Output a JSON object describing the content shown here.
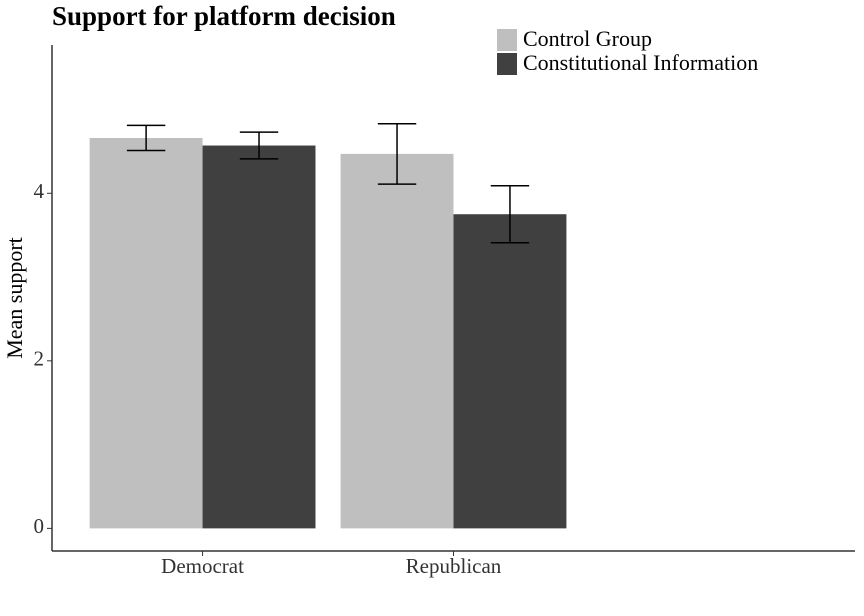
{
  "chart_data": {
    "type": "bar",
    "title": "Support for platform decision",
    "y_label": "Mean support",
    "categories": [
      "Democrat",
      "Republican"
    ],
    "series": [
      {
        "name": "Control Group",
        "color": "#bfbfbf",
        "values": [
          4.66,
          4.47
        ],
        "errors": [
          0.15,
          0.36
        ]
      },
      {
        "name": "Constitutional Information",
        "color": "#404040",
        "values": [
          4.57,
          3.75
        ],
        "errors": [
          0.16,
          0.34
        ]
      }
    ],
    "ylim": [
      -0.27,
      5.77
    ],
    "yticks": [
      0,
      2,
      4
    ],
    "grid": false,
    "legend_position": "top-right"
  }
}
